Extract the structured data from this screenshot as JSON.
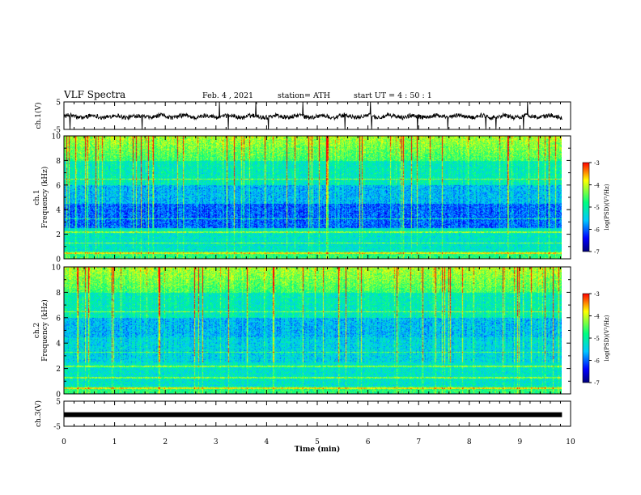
{
  "header": {
    "title": "VLF Spectra",
    "date": "Feb. 4 , 2021",
    "station": "station= ATH",
    "start": "start UT =  4 : 50 : 1"
  },
  "chart_data": [
    {
      "type": "line",
      "title": "",
      "ylabel": "ch.1(V)",
      "xlim": [
        0,
        10
      ],
      "ylim": [
        -5,
        5
      ],
      "yticks": [
        "5",
        "-5"
      ],
      "description_level": -0.3,
      "series": [
        {
          "values": [
            -0.3
          ]
        }
      ]
    },
    {
      "type": "heatmap",
      "ylabel": "ch.1\nFrequency (kHz)",
      "ylabel_lines": [
        "ch.1",
        "Frequency (kHz)"
      ],
      "xlim": [
        0,
        10
      ],
      "ylim": [
        0,
        10
      ],
      "yticks": [
        "0",
        "2",
        "4",
        "6",
        "8",
        "10"
      ],
      "colorbar": {
        "label": "log(PSD)(V²/Hz)",
        "range": [
          -7,
          -3
        ],
        "ticks": [
          "-3",
          "-4",
          "-5",
          "-6",
          "-7"
        ]
      }
    },
    {
      "type": "heatmap",
      "ylabel": "ch.2\nFrequency (kHz)",
      "ylabel_lines": [
        "ch.2",
        "Frequency (kHz)"
      ],
      "xlim": [
        0,
        10
      ],
      "ylim": [
        0,
        10
      ],
      "yticks": [
        "0",
        "2",
        "4",
        "6",
        "8",
        "10"
      ],
      "colorbar": {
        "label": "log(PSD)(V²/Hz)",
        "range": [
          -7,
          -3
        ],
        "ticks": [
          "-3",
          "-4",
          "-5",
          "-6",
          "-7"
        ]
      }
    },
    {
      "type": "line",
      "ylabel": "ch.3(V)",
      "xlim": [
        0,
        10
      ],
      "ylim": [
        -5,
        5
      ],
      "yticks": [
        "5",
        "-5"
      ],
      "series": [
        {
          "values": [
            -0.4
          ]
        }
      ]
    }
  ],
  "xaxis": {
    "label": "Time (min)",
    "ticks": [
      "0",
      "1",
      "2",
      "3",
      "4",
      "5",
      "6",
      "7",
      "8",
      "9",
      "10"
    ],
    "data_end": 9.83
  },
  "colors": {
    "colormap": [
      "#00007a",
      "#0000ff",
      "#00c8ff",
      "#00ff80",
      "#ffff00",
      "#ff0000"
    ]
  }
}
